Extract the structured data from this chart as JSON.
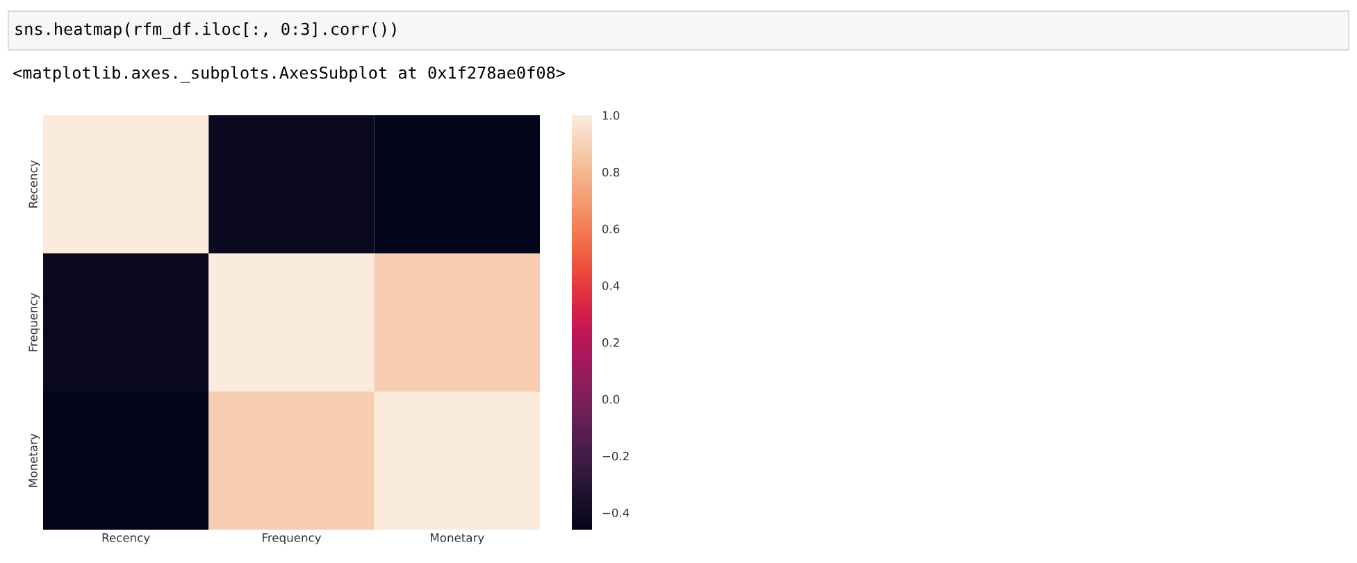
{
  "chart_data": {
    "type": "heatmap",
    "categories": [
      "Recency",
      "Frequency",
      "Monetary"
    ],
    "y_categories": [
      "Recency",
      "Frequency",
      "Monetary"
    ],
    "cells": [
      [
        1.0,
        -0.42,
        -0.46
      ],
      [
        -0.42,
        1.0,
        0.88
      ],
      [
        -0.46,
        0.88,
        1.0
      ]
    ],
    "clim": [
      -0.46,
      1.0
    ],
    "cticks": [
      {
        "value": -0.4,
        "label": "−0.4"
      },
      {
        "value": -0.2,
        "label": "−0.2"
      },
      {
        "value": 0,
        "label": "0.0"
      },
      0.2,
      0.4,
      0.6,
      0.8,
      {
        "value": 1,
        "label": "1.0"
      }
    ],
    "annotations": [
      "sns.heatmap(rfm_df.iloc[:, 0:3].corr())",
      "<matplotlib.axes._subplots.AxesSubplot at 0x1f278ae0f08>"
    ]
  }
}
